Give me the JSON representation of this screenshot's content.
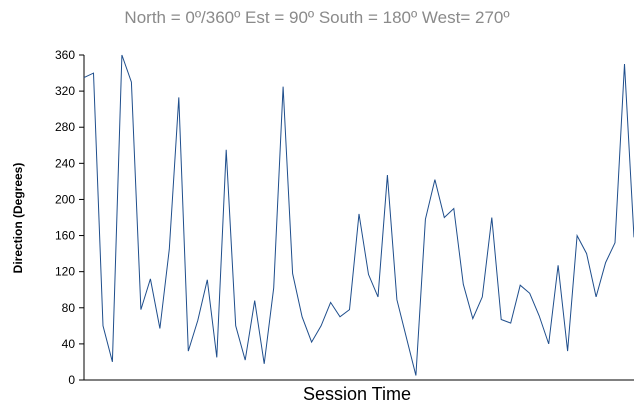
{
  "chart_data": {
    "type": "line",
    "title": "North = 0º/360º   Est = 90º   South = 180º   West= 270º",
    "xlabel": "Session Time",
    "ylabel": "Direction (Degrees)",
    "ylim": [
      0,
      360
    ],
    "yticks": [
      0,
      40,
      80,
      120,
      160,
      200,
      240,
      280,
      320,
      360
    ],
    "grid": false,
    "line_color": "#1f4e8c",
    "series": [
      {
        "values": [
          335,
          340,
          60,
          20,
          360,
          330,
          78,
          112,
          57,
          145,
          313,
          32,
          66,
          111,
          25,
          255,
          60,
          22,
          88,
          18,
          102,
          325,
          118,
          70,
          42,
          60,
          86,
          70,
          78,
          184,
          117,
          92,
          227,
          89,
          47,
          5,
          178,
          222,
          180,
          190,
          106,
          68,
          92,
          180,
          67,
          63,
          105,
          96,
          71,
          40,
          127,
          32,
          160,
          140,
          92,
          130,
          152,
          350,
          158
        ]
      }
    ]
  }
}
